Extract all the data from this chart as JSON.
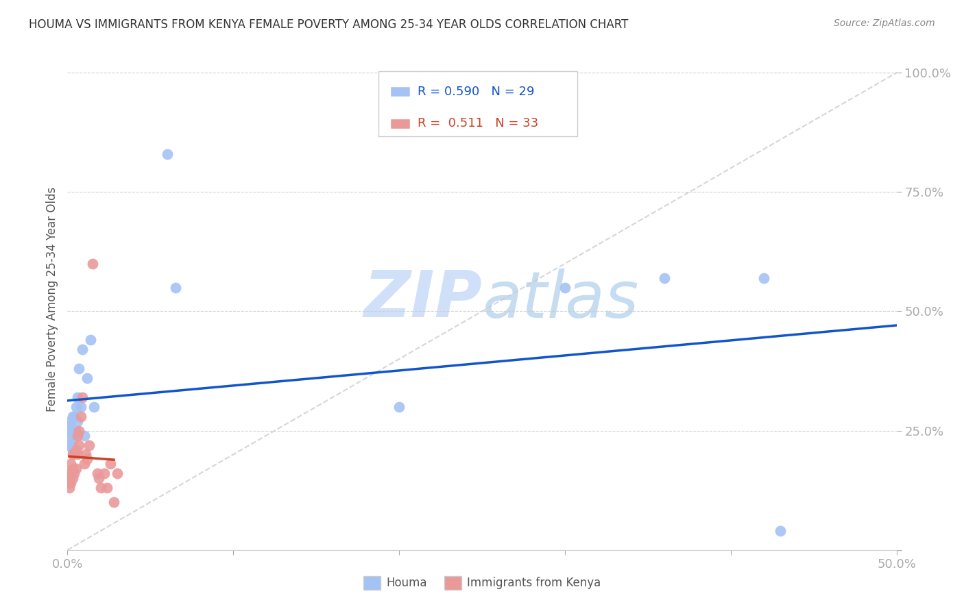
{
  "title": "HOUMA VS IMMIGRANTS FROM KENYA FEMALE POVERTY AMONG 25-34 YEAR OLDS CORRELATION CHART",
  "source": "Source: ZipAtlas.com",
  "ylabel": "Female Poverty Among 25-34 Year Olds",
  "xlim": [
    0.0,
    0.5
  ],
  "ylim": [
    0.0,
    1.05
  ],
  "houma_R": 0.59,
  "houma_N": 29,
  "kenya_R": 0.511,
  "kenya_N": 33,
  "houma_color": "#a4c2f4",
  "kenya_color": "#ea9999",
  "houma_line_color": "#1155cc",
  "kenya_line_color": "#cc4125",
  "diagonal_color": "#cccccc",
  "watermark_color": "#c9daf8",
  "background_color": "#ffffff",
  "houma_x": [
    0.001,
    0.001,
    0.001,
    0.002,
    0.002,
    0.002,
    0.003,
    0.003,
    0.003,
    0.004,
    0.004,
    0.005,
    0.005,
    0.006,
    0.006,
    0.007,
    0.008,
    0.009,
    0.01,
    0.012,
    0.014,
    0.016,
    0.06,
    0.065,
    0.2,
    0.3,
    0.36,
    0.42,
    0.43
  ],
  "houma_y": [
    0.22,
    0.24,
    0.26,
    0.22,
    0.25,
    0.27,
    0.21,
    0.23,
    0.28,
    0.24,
    0.28,
    0.3,
    0.25,
    0.27,
    0.32,
    0.38,
    0.3,
    0.42,
    0.24,
    0.36,
    0.44,
    0.3,
    0.83,
    0.55,
    0.3,
    0.55,
    0.57,
    0.57,
    0.04
  ],
  "kenya_x": [
    0.001,
    0.001,
    0.001,
    0.001,
    0.002,
    0.002,
    0.002,
    0.003,
    0.003,
    0.003,
    0.004,
    0.004,
    0.005,
    0.005,
    0.006,
    0.006,
    0.007,
    0.007,
    0.008,
    0.009,
    0.01,
    0.011,
    0.012,
    0.013,
    0.015,
    0.018,
    0.019,
    0.02,
    0.022,
    0.024,
    0.026,
    0.028,
    0.03
  ],
  "kenya_y": [
    0.13,
    0.14,
    0.15,
    0.16,
    0.14,
    0.16,
    0.18,
    0.15,
    0.17,
    0.2,
    0.16,
    0.2,
    0.17,
    0.21,
    0.2,
    0.24,
    0.22,
    0.25,
    0.28,
    0.32,
    0.18,
    0.2,
    0.19,
    0.22,
    0.6,
    0.16,
    0.15,
    0.13,
    0.16,
    0.13,
    0.18,
    0.1,
    0.16
  ]
}
